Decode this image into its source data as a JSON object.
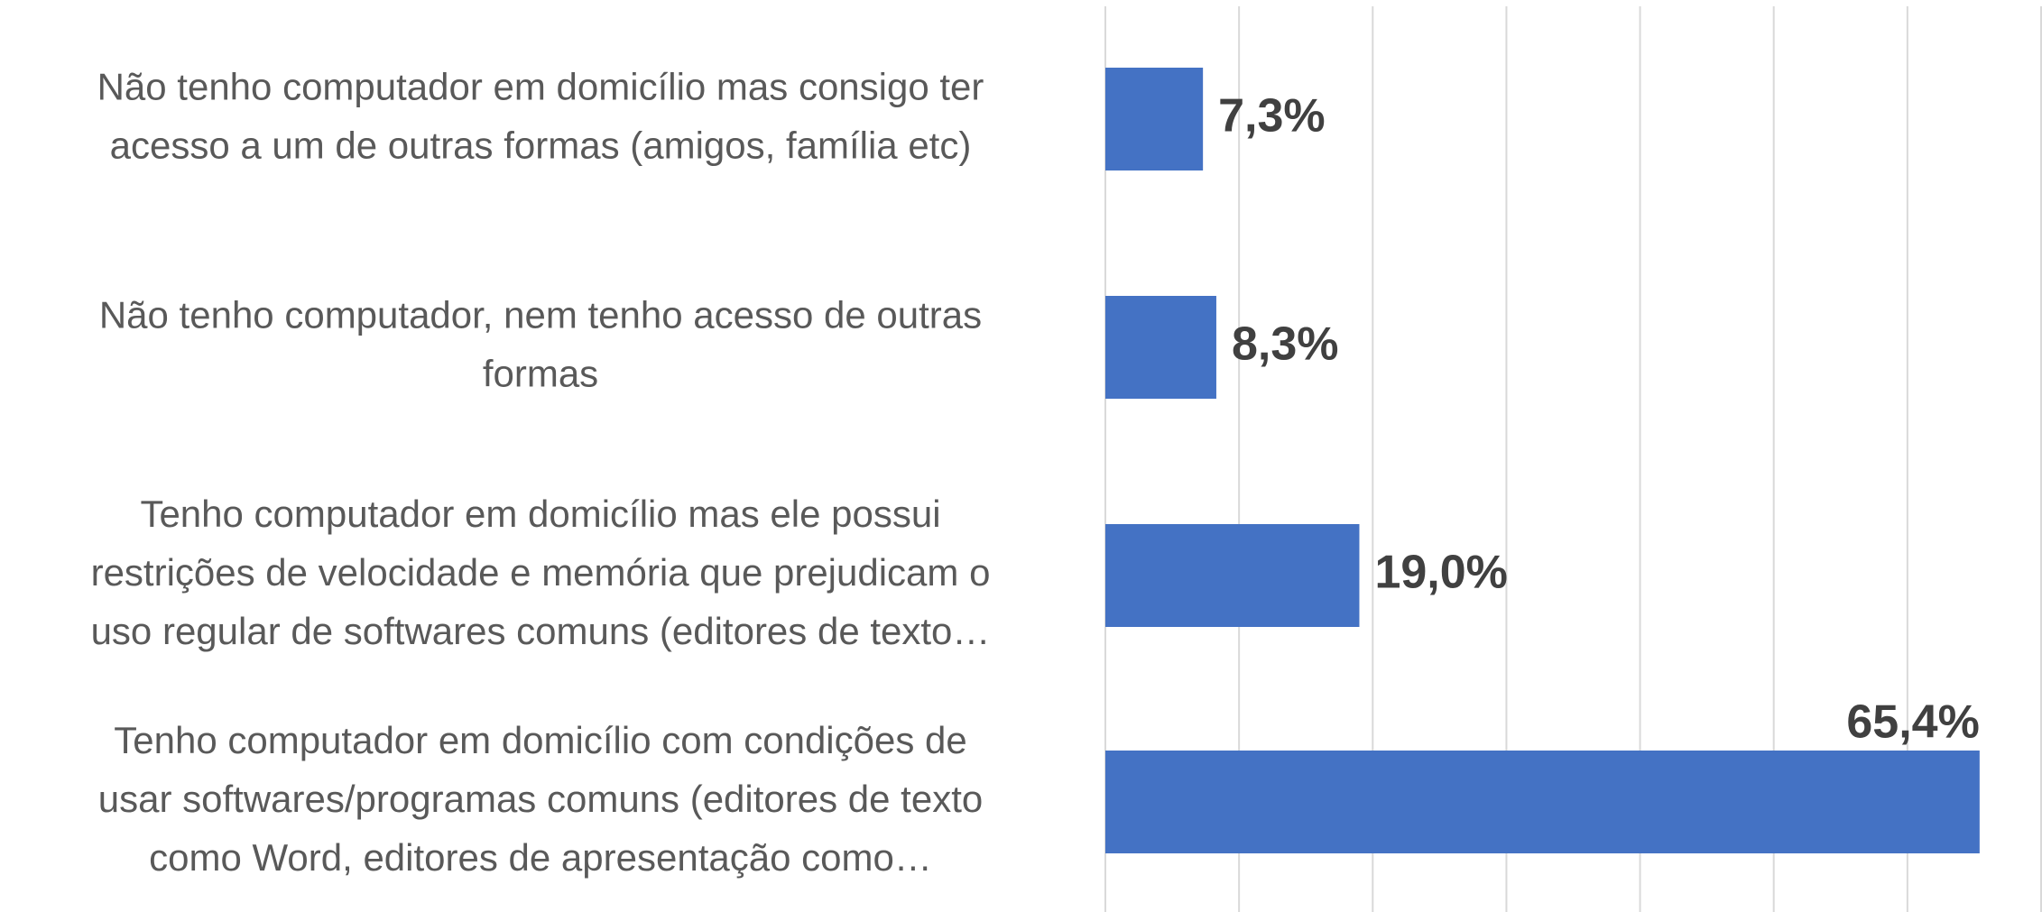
{
  "chart_data": {
    "type": "hbar",
    "categories": [
      [
        "Não tenho computador em domicílio mas consigo ter",
        "acesso a um de outras formas (amigos, família etc)"
      ],
      [
        "Não tenho computador, nem tenho acesso de outras",
        "formas"
      ],
      [
        "Tenho computador em domicílio mas ele possui",
        "restrições de velocidade e memória que prejudicam o",
        "uso regular de softwares comuns (editores de texto…"
      ],
      [
        "Tenho computador em domicílio com condições de",
        "usar softwares/programas comuns (editores de texto",
        "como Word, editores de apresentação como…"
      ]
    ],
    "values": [
      7.3,
      8.3,
      19.0,
      65.4
    ],
    "value_labels": [
      "7,3%",
      "8,3%",
      "19,0%",
      "65,4%"
    ],
    "color": "#4472c4",
    "xlim": [
      0,
      70
    ],
    "xticks": [
      0,
      10,
      20,
      30,
      40,
      50,
      60,
      70
    ],
    "grid": true
  }
}
